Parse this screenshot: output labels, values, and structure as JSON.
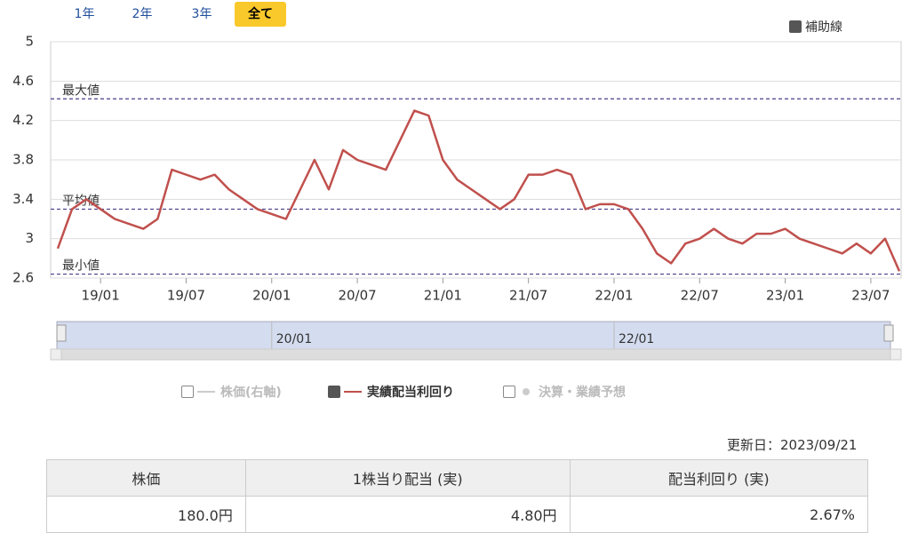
{
  "range_buttons": [
    "1年",
    "2年",
    "3年",
    "全て"
  ],
  "aux_lines_checkbox": "補助線",
  "chart_data": {
    "type": "line",
    "x": [
      "18/10",
      "18/11",
      "18/12",
      "19/01",
      "19/02",
      "19/03",
      "19/04",
      "19/05",
      "19/06",
      "19/07",
      "19/08",
      "19/09",
      "19/10",
      "19/11",
      "19/12",
      "20/01",
      "20/02",
      "20/03",
      "20/04",
      "20/05",
      "20/06",
      "20/07",
      "20/08",
      "20/09",
      "20/10",
      "20/11",
      "20/12",
      "21/01",
      "21/02",
      "21/03",
      "21/04",
      "21/05",
      "21/06",
      "21/07",
      "21/08",
      "21/09",
      "21/10",
      "21/11",
      "21/12",
      "22/01",
      "22/02",
      "22/03",
      "22/04",
      "22/05",
      "22/06",
      "22/07",
      "22/08",
      "22/09",
      "22/10",
      "22/11",
      "22/12",
      "23/01",
      "23/02",
      "23/03",
      "23/04",
      "23/05",
      "23/06",
      "23/07",
      "23/08",
      "23/09"
    ],
    "series": [
      {
        "name": "実績配当利回り",
        "color": "#c0504d",
        "values": [
          2.9,
          3.3,
          3.4,
          3.3,
          3.2,
          3.15,
          3.1,
          3.2,
          3.7,
          3.65,
          3.6,
          3.65,
          3.5,
          3.4,
          3.3,
          3.25,
          3.2,
          3.5,
          3.8,
          3.5,
          3.9,
          3.8,
          3.75,
          3.7,
          4.0,
          4.3,
          4.25,
          3.8,
          3.6,
          3.5,
          3.4,
          3.3,
          3.4,
          3.65,
          3.65,
          3.7,
          3.65,
          3.3,
          3.35,
          3.35,
          3.3,
          3.1,
          2.85,
          2.75,
          2.95,
          3.0,
          3.1,
          3.0,
          2.95,
          3.05,
          3.05,
          3.1,
          3.0,
          2.95,
          2.9,
          2.85,
          2.95,
          2.85,
          3.0,
          2.67
        ]
      }
    ],
    "xticks": [
      "19/01",
      "19/07",
      "20/01",
      "20/07",
      "21/01",
      "21/07",
      "22/01",
      "22/07",
      "23/01",
      "23/07"
    ],
    "ylim": [
      2.6,
      5
    ],
    "yticks": [
      2.6,
      3,
      3.4,
      3.8,
      4.2,
      4.6,
      5
    ],
    "grid": true,
    "reference_lines": [
      {
        "label": "最大値",
        "value": 4.42
      },
      {
        "label": "平均値",
        "value": 3.3
      },
      {
        "label": "最小値",
        "value": 2.64
      }
    ],
    "reference_color": "#4b3e8a",
    "navigator_ticks": [
      "20/01",
      "22/01"
    ],
    "legend_inactive": [
      "株価(右軸)",
      "決算・業績予想"
    ]
  },
  "updated": "更新日：2023/09/21",
  "table": {
    "header": [
      "株価",
      "1株当り配当 (実)",
      "配当利回り (実)"
    ],
    "rows": [
      [
        "180.0円",
        "4.80円",
        "2.67%"
      ]
    ]
  }
}
